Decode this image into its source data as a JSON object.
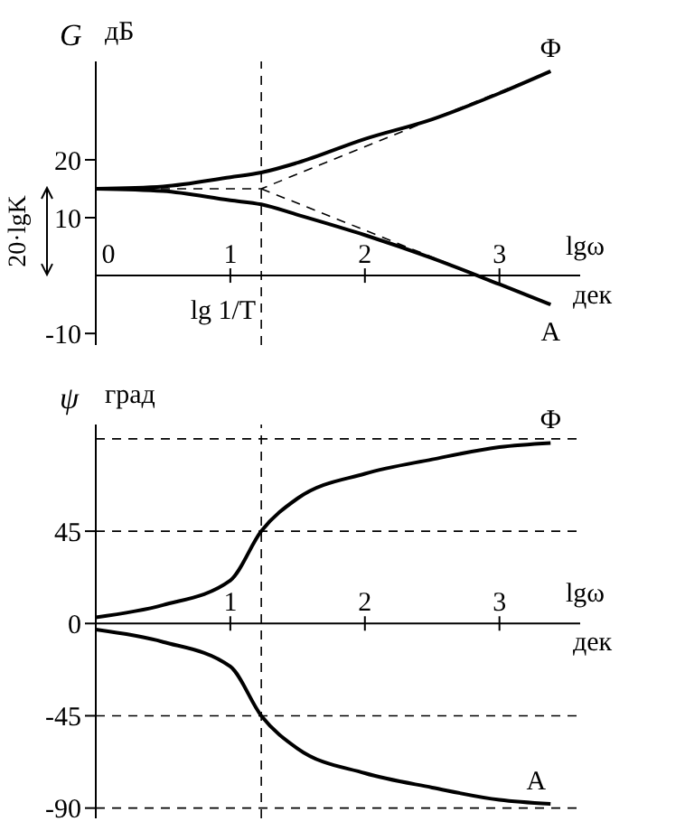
{
  "chart_data": [
    {
      "type": "line",
      "ylabel": "G",
      "xlabel": "lgω",
      "annotations": [
        "дБ",
        "дек",
        "20·lgK"
      ],
      "xlim": [
        0,
        3.6
      ],
      "xticks": [
        0,
        1,
        2,
        3
      ],
      "ylim": [
        -12,
        37
      ],
      "yticks": [
        -10,
        10,
        20
      ],
      "ref_lines": [
        {
          "axis": "x",
          "value": 1.23,
          "label": "lg 1/T",
          "line_style": "dashed",
          "color": "#000000"
        }
      ],
      "series": [
        {
          "name": "Ф",
          "color": "#000000",
          "line_style": "solid",
          "x": [
            0,
            0.5,
            1,
            1.23,
            1.5,
            2,
            2.5,
            3,
            3.38
          ],
          "values": [
            15,
            15.4,
            17,
            17.8,
            19.5,
            23.6,
            27,
            31.5,
            35.3
          ]
        },
        {
          "name": "А",
          "color": "#000000",
          "line_style": "solid",
          "x": [
            0,
            0.5,
            1,
            1.23,
            1.5,
            2,
            2.5,
            3,
            3.38
          ],
          "values": [
            15,
            14.6,
            13,
            12.3,
            10.5,
            7,
            3,
            -1.5,
            -5
          ]
        },
        {
          "color": "#000000",
          "line_style": "dashed",
          "x": [
            0,
            1.23,
            3.38
          ],
          "values": [
            15,
            15,
            35.3
          ]
        },
        {
          "color": "#000000",
          "line_style": "dashed",
          "x": [
            1.23,
            3.38
          ],
          "values": [
            15,
            -5
          ]
        }
      ]
    },
    {
      "type": "line",
      "ylabel": "ψ",
      "xlabel": "lgω",
      "annotations": [
        "град",
        "дек"
      ],
      "xlim": [
        0,
        3.6
      ],
      "xticks": [
        1,
        2,
        3
      ],
      "ylim": [
        -95,
        97
      ],
      "yticks": [
        -90,
        -45,
        0,
        45
      ],
      "ref_lines": [
        {
          "axis": "x",
          "value": 1.23,
          "line_style": "dashed",
          "color": "#000000"
        },
        {
          "axis": "y",
          "value": 90,
          "line_style": "dashed",
          "color": "#000000"
        },
        {
          "axis": "y",
          "value": 45,
          "line_style": "dashed",
          "color": "#000000"
        },
        {
          "axis": "y",
          "value": -45,
          "line_style": "dashed",
          "color": "#000000"
        },
        {
          "axis": "y",
          "value": -90,
          "line_style": "dashed",
          "color": "#000000"
        }
      ],
      "series": [
        {
          "name": "Ф",
          "color": "#000000",
          "line_style": "solid",
          "x": [
            0,
            0.5,
            1,
            1.23,
            1.5,
            2,
            2.5,
            3,
            3.38
          ],
          "values": [
            3,
            9,
            21,
            45,
            61,
            73,
            80,
            86,
            88
          ]
        },
        {
          "name": "А",
          "color": "#000000",
          "line_style": "solid",
          "x": [
            0,
            0.5,
            1,
            1.23,
            1.5,
            2,
            2.5,
            3,
            3.38
          ],
          "values": [
            -3,
            -9,
            -21,
            -45,
            -61,
            -73,
            -80,
            -86,
            -88
          ]
        }
      ]
    }
  ]
}
